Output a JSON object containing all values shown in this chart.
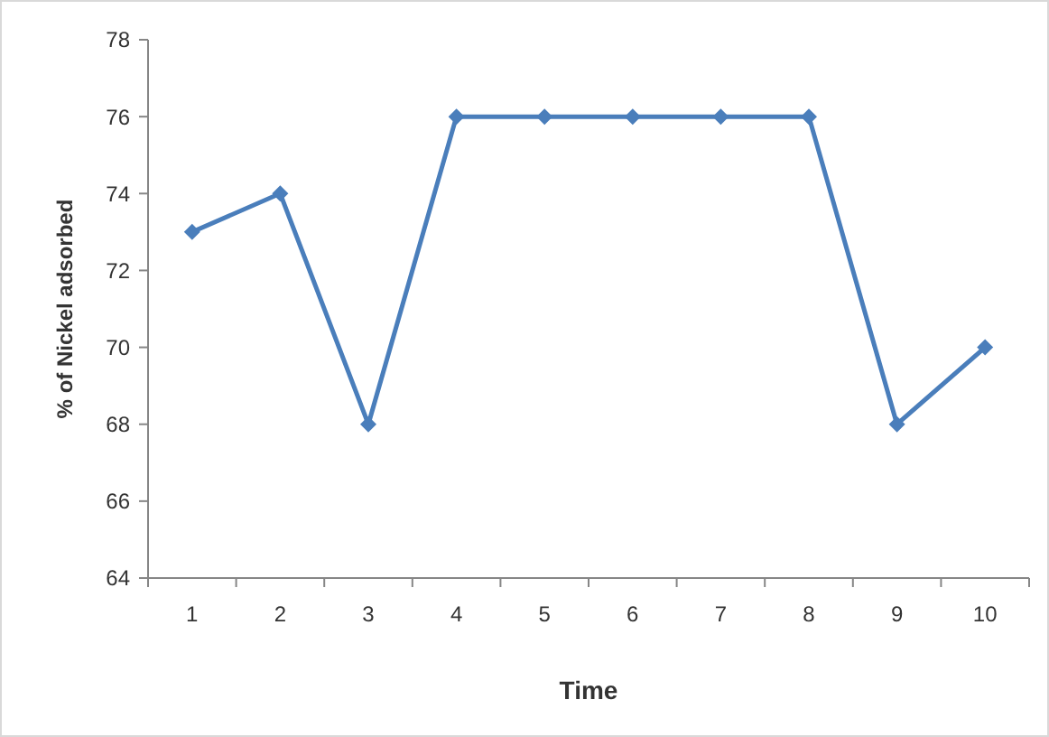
{
  "chart_data": {
    "type": "line",
    "xlabel": "Time",
    "ylabel": "% of Nickel adsorbed",
    "categories": [
      "1",
      "2",
      "3",
      "4",
      "5",
      "6",
      "7",
      "8",
      "9",
      "10"
    ],
    "series": [
      {
        "color": "#4a7ebb",
        "values": [
          73,
          74,
          68,
          76,
          76,
          76,
          76,
          76,
          68,
          70
        ]
      }
    ],
    "ylim": [
      64,
      78
    ],
    "yticks": [
      64,
      66,
      68,
      70,
      72,
      74,
      76,
      78
    ],
    "grid": false,
    "marker": "diamond",
    "line_style": "solid"
  }
}
